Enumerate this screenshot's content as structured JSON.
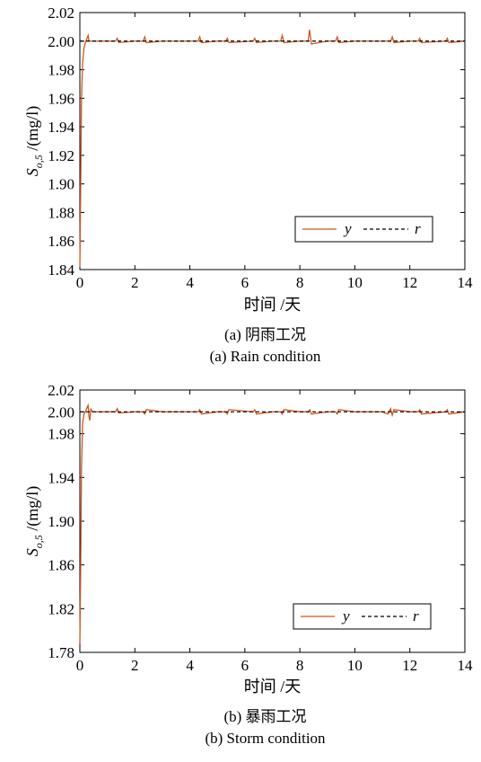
{
  "chart_data": [
    {
      "type": "line",
      "xlabel": "时间 /天",
      "ylabel": "S_{o,5} /(mg/l)",
      "xlim": [
        0,
        14
      ],
      "ylim": [
        1.84,
        2.02
      ],
      "xticks": [
        "0",
        "2",
        "4",
        "6",
        "8",
        "10",
        "12",
        "14"
      ],
      "yticks": [
        "1.84",
        "1.86",
        "1.88",
        "1.90",
        "1.92",
        "1.94",
        "1.96",
        "1.98",
        "2.00",
        "2.02"
      ],
      "legend_position": "bottom-right",
      "caption_cn": "(a) 阴雨工况",
      "caption_en": "(a) Rain condition",
      "series": [
        {
          "name": "y",
          "style": "solid",
          "color": "#d2541c",
          "x": [
            0,
            0.03,
            0.06,
            0.1,
            0.15,
            0.2,
            0.26,
            0.3,
            0.33,
            0.36,
            0.5,
            1.0,
            1.3,
            1.36,
            1.42,
            2.0,
            2.3,
            2.36,
            2.42,
            3.0,
            4.3,
            4.36,
            4.42,
            5.0,
            5.3,
            5.36,
            5.42,
            6.3,
            6.36,
            6.42,
            7.0,
            7.3,
            7.36,
            7.42,
            8.0,
            8.3,
            8.35,
            8.42,
            9.0,
            9.3,
            9.36,
            9.42,
            10.0,
            11.3,
            11.36,
            11.42,
            12.0,
            12.3,
            12.36,
            12.42,
            13.3,
            13.36,
            13.42,
            14.0
          ],
          "y": [
            1.842,
            1.9,
            1.96,
            1.985,
            1.995,
            1.999,
            2.002,
            2.004,
            2.0,
            2.0,
            2.0,
            2.0,
            2.0,
            2.002,
            1.999,
            2.0,
            2.0,
            2.003,
            1.999,
            2.0,
            2.0,
            2.003,
            1.999,
            2.0,
            2.0,
            2.002,
            1.999,
            2.0,
            2.002,
            1.999,
            2.0,
            2.0,
            2.004,
            1.999,
            2.0,
            2.0,
            2.008,
            1.998,
            2.0,
            2.0,
            2.003,
            1.999,
            2.0,
            2.0,
            2.003,
            1.999,
            2.0,
            2.0,
            2.002,
            1.999,
            2.0,
            2.002,
            1.999,
            2.0
          ]
        },
        {
          "name": "r",
          "style": "dashed",
          "color": "#000000",
          "x": [
            0,
            14
          ],
          "y": [
            2.0,
            2.0
          ]
        }
      ]
    },
    {
      "type": "line",
      "xlabel": "时间 /天",
      "ylabel": "S_{o,5} /(mg/l)",
      "xlim": [
        0,
        14
      ],
      "ylim": [
        1.78,
        2.02
      ],
      "xticks": [
        "0",
        "2",
        "4",
        "6",
        "8",
        "10",
        "12",
        "14"
      ],
      "yticks": [
        "1.78",
        "1.82",
        "1.86",
        "1.90",
        "1.94",
        "1.98",
        "2.00",
        "2.02"
      ],
      "legend_position": "bottom-right",
      "caption_cn": "(b) 暴雨工况",
      "caption_en": "(b) Storm condition",
      "series": [
        {
          "name": "y",
          "style": "solid",
          "color": "#d2541c",
          "x": [
            0,
            0.03,
            0.06,
            0.1,
            0.15,
            0.2,
            0.26,
            0.3,
            0.33,
            0.36,
            0.4,
            0.45,
            0.5,
            1.0,
            1.3,
            1.36,
            1.42,
            2.0,
            2.3,
            2.36,
            2.42,
            3.0,
            4.3,
            4.36,
            4.42,
            5.0,
            5.3,
            5.36,
            5.42,
            6.3,
            6.36,
            6.42,
            7.0,
            7.3,
            7.36,
            7.42,
            8.0,
            8.3,
            8.36,
            8.42,
            9.0,
            9.3,
            9.36,
            9.42,
            10.0,
            11.0,
            11.2,
            11.3,
            11.36,
            11.42,
            12.0,
            12.3,
            12.36,
            12.42,
            13.3,
            13.36,
            13.42,
            14.0
          ],
          "y": [
            1.788,
            1.86,
            1.95,
            1.99,
            1.998,
            2.0,
            2.004,
            2.006,
            1.996,
            1.992,
            2.003,
            2.0,
            2.0,
            2.0,
            2.0,
            2.003,
            1.999,
            2.0,
            2.0,
            1.998,
            2.002,
            2.0,
            2.0,
            2.002,
            1.998,
            2.0,
            2.0,
            1.998,
            2.002,
            2.0,
            2.002,
            1.998,
            2.0,
            2.0,
            1.998,
            2.002,
            2.0,
            2.0,
            2.002,
            1.998,
            2.0,
            2.0,
            1.998,
            2.002,
            2.0,
            2.0,
            1.998,
            2.003,
            1.997,
            2.002,
            2.0,
            2.0,
            2.002,
            1.998,
            2.0,
            2.002,
            1.998,
            2.0
          ]
        },
        {
          "name": "r",
          "style": "dashed",
          "color": "#000000",
          "x": [
            0,
            14
          ],
          "y": [
            2.0,
            2.0
          ]
        }
      ]
    }
  ]
}
